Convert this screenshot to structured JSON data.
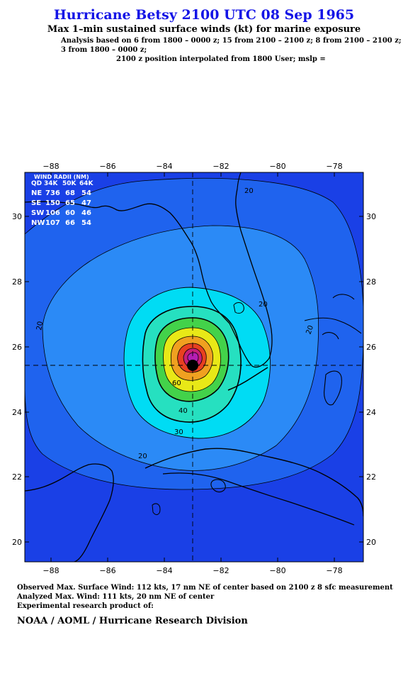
{
  "header": {
    "title": "Hurricane Betsy 2100 UTC 08 Sep 1965",
    "subtitle": "Max 1–min sustained surface winds (kt) for marine exposure",
    "analysis_line1": "Analysis based on  6 from 1800 – 0000 z;  15 from 2100 – 2100 z;  8 from 2100 – 2100 z;",
    "analysis_line2": "3 from 1800 – 0000 z;",
    "analysis_line3": "2100 z position interpolated from 1800 User; mslp ="
  },
  "map": {
    "lon_ticks": [
      "−88",
      "−86",
      "−84",
      "−82",
      "−80",
      "−78"
    ],
    "lat_ticks": [
      "30",
      "28",
      "26",
      "24",
      "22",
      "20"
    ],
    "extent": {
      "lon_min": -89,
      "lon_max": -77,
      "lat_min": 19.4,
      "lat_max": 31.4
    },
    "center": {
      "lon": -83.0,
      "lat": 25.4
    },
    "contour_labels": [
      "20",
      "20",
      "20",
      "20",
      "20",
      "30",
      "40",
      "60"
    ],
    "colors": {
      "ocean_base": "#1a40e6",
      "level_20": "#1f63ee",
      "level_30": "#2b8af6",
      "level_40": "#00dcf4",
      "level_50": "#26e0c0",
      "level_60": "#43d24a",
      "level_70": "#e8e817",
      "level_80": "#f0a020",
      "level_90": "#e84020",
      "level_100": "#c81e78",
      "level_110": "#b41eb4",
      "eye": "#000000",
      "title": "#1414e6"
    }
  },
  "wind_radii": {
    "title": "WIND RADII (NM)",
    "header": [
      "QD",
      "34K",
      "50K",
      "64K"
    ],
    "rows": [
      [
        "NE",
        "736",
        "68",
        "54"
      ],
      [
        "SE",
        "150",
        "65",
        "47"
      ],
      [
        "SW",
        "106",
        "60",
        "46"
      ],
      [
        "NW",
        "107",
        "66",
        "54"
      ]
    ]
  },
  "footer": {
    "line1": "Observed Max. Surface Wind: 112 kts, 17 nm NE of center based on 2100 z 8 sfc measurement",
    "line2": "Analyzed Max. Wind: 111 kts, 20 nm NE of center",
    "line3": "Experimental research product of:",
    "org": "NOAA / AOML / Hurricane Research Division"
  }
}
